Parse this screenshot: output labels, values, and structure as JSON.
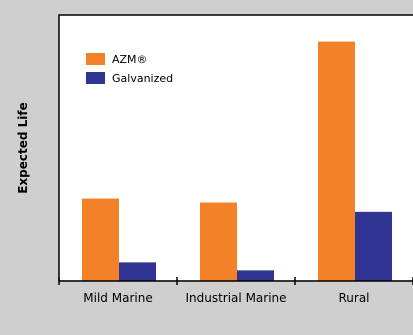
{
  "chart_data": {
    "type": "bar",
    "title": "",
    "xlabel": "",
    "ylabel": "Expected Life",
    "categories": [
      "Mild Marine",
      "Industrial Marine",
      "Rural"
    ],
    "series": [
      {
        "name": "AZM®",
        "values": [
          31,
          29.5,
          90
        ]
      },
      {
        "name": "Galvanized",
        "values": [
          7,
          4,
          26
        ]
      }
    ],
    "ylim": [
      0,
      100
    ],
    "grid": false,
    "legend_position": "top-left",
    "colors": {
      "AZM®": "#f28128",
      "Galvanized": "#2f3492",
      "background": "#cfcfcf",
      "plot_background": "#ffffff",
      "axis": "#000000"
    }
  }
}
